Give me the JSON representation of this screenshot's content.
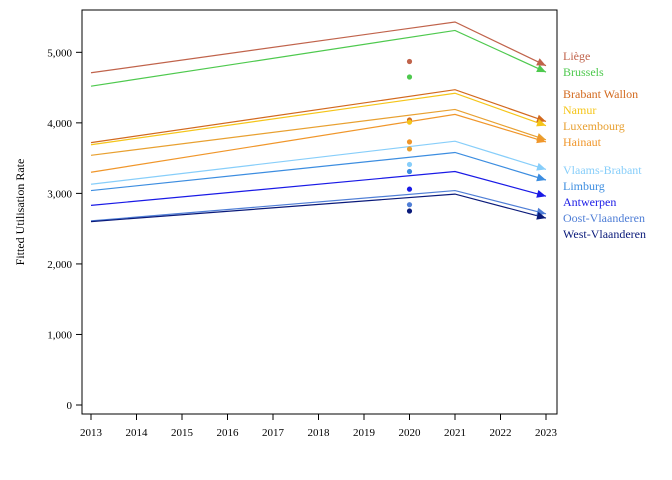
{
  "chart_data": {
    "type": "line",
    "title": "",
    "xlabel": "",
    "ylabel": "Fitted Utilisation Rate",
    "x_ticks": [
      "2013",
      "2014",
      "2015",
      "2016",
      "2017",
      "2018",
      "2019",
      "2020",
      "2021",
      "2022",
      "2023"
    ],
    "y_ticks": [
      "0",
      "1,000",
      "2,000",
      "3,000",
      "4,000",
      "5,000"
    ],
    "xlim": [
      2013,
      2023
    ],
    "ylim": [
      0,
      5600
    ],
    "grid": false,
    "legend_placement": "right",
    "x": [
      2013,
      2021,
      2023
    ],
    "series": [
      {
        "name": "Liège",
        "color": "#c0634b",
        "values": [
          4710,
          5430,
          4810
        ],
        "point": 4870
      },
      {
        "name": "Brussels",
        "color": "#4ec94e",
        "values": [
          4520,
          5310,
          4720
        ],
        "point": 4650
      },
      {
        "name": "Brabant Wallon",
        "color": "#d2691e",
        "values": [
          3720,
          4470,
          4020
        ],
        "point": 4040
      },
      {
        "name": "Namur",
        "color": "#f5c518",
        "values": [
          3690,
          4420,
          3960
        ],
        "point": 4010
      },
      {
        "name": "Luxembourg",
        "color": "#e8a030",
        "values": [
          3540,
          4190,
          3760
        ],
        "point": 3630
      },
      {
        "name": "Hainaut",
        "color": "#f0962a",
        "values": [
          3300,
          4120,
          3730
        ],
        "point": 3730
      },
      {
        "name": "Vlaams-Brabant",
        "color": "#87cefa",
        "values": [
          3130,
          3740,
          3340
        ],
        "point": 3410
      },
      {
        "name": "Limburg",
        "color": "#3c8de0",
        "values": [
          3040,
          3580,
          3190
        ],
        "point": 3310
      },
      {
        "name": "Antwerpen",
        "color": "#1a1ae6",
        "values": [
          2830,
          3310,
          2960
        ],
        "point": 3060
      },
      {
        "name": "Oost-Vlaanderen",
        "color": "#4f7ed6",
        "values": [
          2610,
          3040,
          2710
        ],
        "point": 2840
      },
      {
        "name": "West-Vlaanderen",
        "color": "#0a1a7a",
        "values": [
          2600,
          2990,
          2650
        ],
        "point": 2750
      }
    ],
    "point_x": 2020
  }
}
